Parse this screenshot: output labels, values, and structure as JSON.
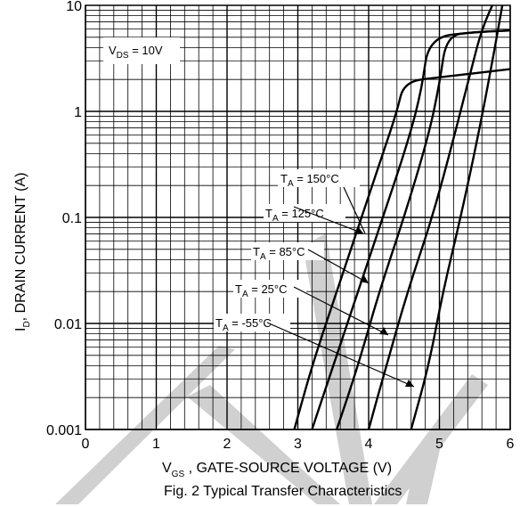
{
  "chart_data": {
    "type": "line",
    "title": "",
    "caption": "Fig. 2 Typical Transfer Characteristics",
    "xlabel": {
      "main": "V",
      "sub": "GS",
      "rest": " , GATE-SOURCE VOLTAGE (V)"
    },
    "ylabel": {
      "main": "I",
      "sub": "D",
      "rest": ", DRAIN CURRENT (A)"
    },
    "xlim": [
      0,
      6
    ],
    "ylim": [
      0.001,
      10
    ],
    "yscale": "log",
    "grid": true,
    "x_ticks": [
      "0",
      "1",
      "2",
      "3",
      "4",
      "5",
      "6"
    ],
    "y_ticks": [
      {
        "value": 0.001,
        "label": "0.001"
      },
      {
        "value": 0.01,
        "label": "0.01"
      },
      {
        "value": 0.1,
        "label": "0.1"
      },
      {
        "value": 1,
        "label": "1"
      },
      {
        "value": 10,
        "label": "10"
      }
    ],
    "condition": {
      "main": "V",
      "sub": "DS",
      "rest": " = 10V"
    },
    "series": [
      {
        "name_main": "T",
        "name_sub": "A",
        "name_rest": " = 150°C",
        "x": [
          2.95,
          3.2,
          3.55,
          3.9,
          4.2,
          4.4,
          4.5,
          5.0,
          6.0
        ],
        "y": [
          0.001,
          0.004,
          0.02,
          0.1,
          0.4,
          1.0,
          1.9,
          2.1,
          2.5
        ]
      },
      {
        "name_main": "T",
        "name_sub": "A",
        "name_rest": " = 125°C",
        "x": [
          3.2,
          3.5,
          3.85,
          4.2,
          4.55,
          4.75,
          4.85,
          5.5,
          6.0
        ],
        "y": [
          0.001,
          0.004,
          0.02,
          0.1,
          0.5,
          1.6,
          5.0,
          5.6,
          5.8
        ]
      },
      {
        "name_main": "T",
        "name_sub": "A",
        "name_rest": " = 85°C",
        "x": [
          3.55,
          3.85,
          4.15,
          4.5,
          4.85,
          5.0,
          5.1,
          5.5,
          6.0
        ],
        "y": [
          0.001,
          0.004,
          0.02,
          0.1,
          0.6,
          1.8,
          5.2,
          5.6,
          5.8
        ]
      },
      {
        "name_main": "T",
        "name_sub": "A",
        "name_rest": " = 25°C",
        "x": [
          4.0,
          4.25,
          4.55,
          4.9,
          5.2,
          5.45,
          5.6,
          5.8
        ],
        "y": [
          0.001,
          0.004,
          0.02,
          0.1,
          0.55,
          2.5,
          6.0,
          12
        ]
      },
      {
        "name_main": "T",
        "name_sub": "A",
        "name_rest": " = -55°C",
        "x": [
          4.6,
          4.85,
          5.05,
          5.3,
          5.55,
          5.75,
          5.9
        ],
        "y": [
          0.001,
          0.004,
          0.02,
          0.1,
          0.6,
          3.0,
          11
        ]
      }
    ]
  },
  "watermark": "PRELIMINARY",
  "colors": {
    "axis": "#000000",
    "grid": "#000000",
    "curve": "#000000",
    "watermark": "#c8c8c8"
  }
}
